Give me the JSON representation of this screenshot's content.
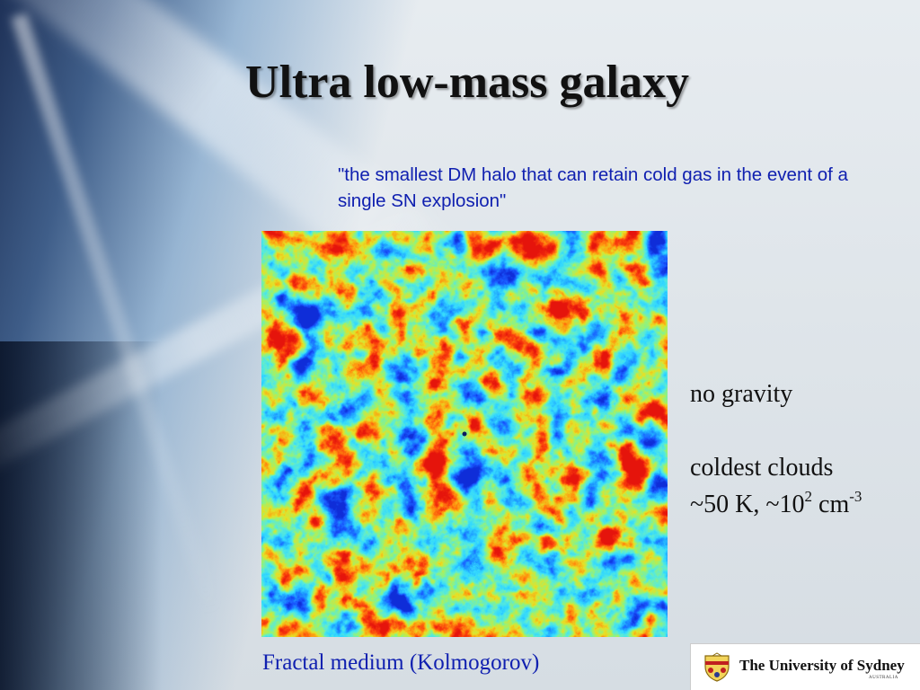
{
  "slide": {
    "title": "Ultra low-mass galaxy",
    "quote": "\"the smallest DM halo that can retain cold gas in the event of a single SN explosion\"",
    "figure_caption": "Fractal medium (Kolmogorov)",
    "notes": {
      "line1": "no gravity",
      "line2": "coldest clouds",
      "line3_prefix": "~50 K, ~10",
      "line3_exp1": "2",
      "line3_mid": " cm",
      "line3_exp2": "-3"
    },
    "logo": {
      "name": "The University of Sydney",
      "subtitle": "AUSTRALIA"
    }
  },
  "colors": {
    "title": "#111111",
    "quote": "#1020b0",
    "caption": "#1020b0",
    "field_low": "#1e3cff",
    "field_mid": "#4fe0ff",
    "field_high": "#ffe020",
    "field_peak": "#e01010"
  }
}
